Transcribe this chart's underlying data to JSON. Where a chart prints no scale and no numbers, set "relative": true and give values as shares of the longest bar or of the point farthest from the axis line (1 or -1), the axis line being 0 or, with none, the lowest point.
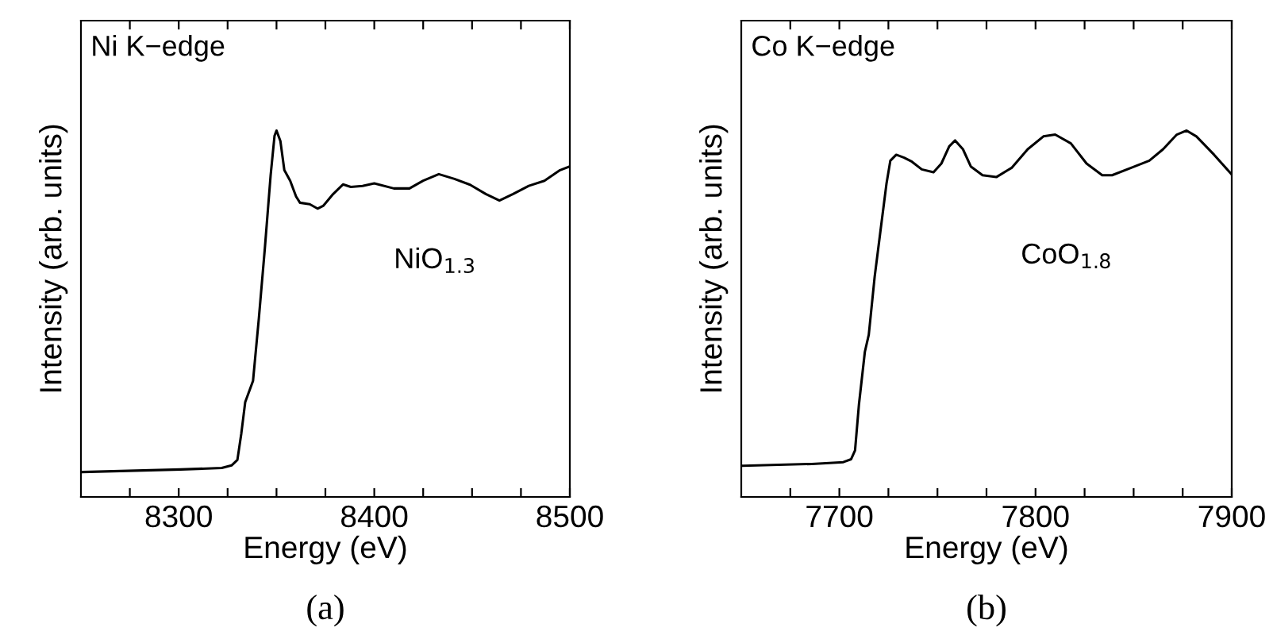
{
  "chart_data": [
    {
      "type": "line",
      "relative": true,
      "tick_labels": "x",
      "xlabel": "Energy (eV)",
      "ylabel": "Intensity (arb. units)",
      "xlim": [
        8250,
        8500
      ],
      "xticks": [
        {
          "value": 8275,
          "label": null
        },
        8300,
        {
          "value": 8325,
          "label": null
        },
        {
          "value": 8350,
          "label": null
        },
        {
          "value": 8375,
          "label": null
        },
        8400,
        {
          "value": 8425,
          "label": null
        },
        {
          "value": 8450,
          "label": null
        },
        {
          "value": 8475,
          "label": null
        },
        8500
      ],
      "annotations": [
        "Ni K−edge",
        "(a)"
      ],
      "legend": false,
      "grid": false,
      "series": [
        {
          "name": "NiO$_{1.3}$",
          "color": "#000000",
          "x": [
            8251,
            8301,
            8322,
            8327,
            8330,
            8332,
            8334,
            8338,
            8341,
            8344,
            8347,
            8349,
            8350,
            8352,
            8354,
            8357,
            8360,
            8362,
            8367,
            8371,
            8374,
            8379,
            8384,
            8388,
            8394,
            8400,
            8410,
            8418,
            8425,
            8433,
            8441,
            8449,
            8457,
            8464,
            8471,
            8479,
            8487,
            8495,
            8500
          ],
          "values": [
            0.068,
            0.075,
            0.079,
            0.086,
            0.101,
            0.173,
            0.259,
            0.317,
            0.489,
            0.676,
            0.878,
            0.986,
            1.0,
            0.971,
            0.892,
            0.863,
            0.82,
            0.803,
            0.799,
            0.787,
            0.795,
            0.827,
            0.853,
            0.846,
            0.849,
            0.856,
            0.842,
            0.842,
            0.863,
            0.881,
            0.868,
            0.852,
            0.827,
            0.809,
            0.827,
            0.849,
            0.863,
            0.892,
            0.902
          ]
        }
      ]
    },
    {
      "type": "line",
      "relative": true,
      "tick_labels": "x",
      "xlabel": "Energy (eV)",
      "ylabel": "Intensity (arb. units)",
      "xlim": [
        7650,
        7900
      ],
      "xticks": [
        {
          "value": 7675,
          "label": null
        },
        7700,
        {
          "value": 7725,
          "label": null
        },
        {
          "value": 7750,
          "label": null
        },
        {
          "value": 7775,
          "label": null
        },
        7800,
        {
          "value": 7825,
          "label": null
        },
        {
          "value": 7850,
          "label": null
        },
        {
          "value": 7875,
          "label": null
        },
        7900
      ],
      "annotations": [
        "Co K−edge",
        "(b)"
      ],
      "legend": false,
      "grid": false,
      "series": [
        {
          "name": "CoO$_{1.8}$",
          "color": "#000000",
          "x": [
            7651,
            7686,
            7702,
            7706,
            7708,
            7710,
            7713,
            7715,
            7718,
            7721,
            7724,
            7726,
            7729,
            7733,
            7737,
            7742,
            7748,
            7752,
            7756,
            7759,
            7763,
            7767,
            7773,
            7780,
            7788,
            7796,
            7804,
            7810,
            7818,
            7826,
            7834,
            7839,
            7849,
            7858,
            7865,
            7872,
            7877,
            7882,
            7891,
            7900
          ],
          "values": [
            0.085,
            0.09,
            0.095,
            0.103,
            0.127,
            0.253,
            0.396,
            0.443,
            0.601,
            0.728,
            0.854,
            0.918,
            0.934,
            0.926,
            0.915,
            0.894,
            0.886,
            0.91,
            0.957,
            0.973,
            0.949,
            0.902,
            0.878,
            0.873,
            0.899,
            0.949,
            0.984,
            0.989,
            0.965,
            0.91,
            0.878,
            0.878,
            0.899,
            0.918,
            0.949,
            0.989,
            1.0,
            0.984,
            0.934,
            0.88
          ]
        }
      ]
    }
  ]
}
